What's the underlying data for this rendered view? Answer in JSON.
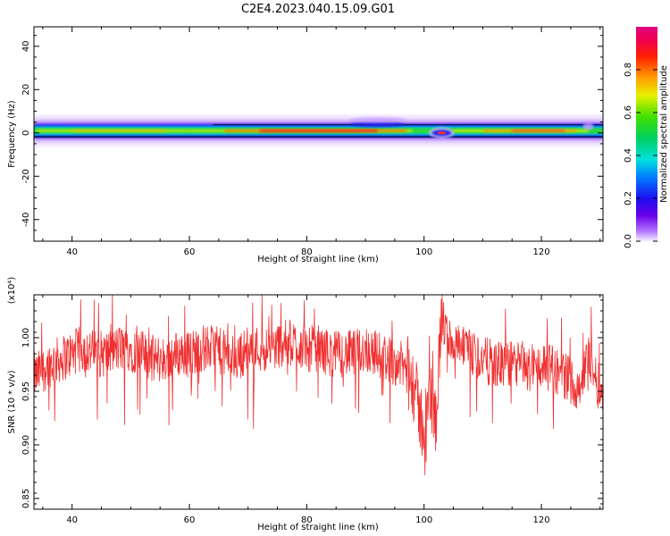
{
  "title": "C2E4.2023.040.15.09.G01",
  "colors": {
    "snr_line": "#f03030",
    "dark_band": "#0a1e6e",
    "axis": "#000000"
  },
  "chart_data": [
    {
      "type": "heatmap",
      "xlabel": "Height of straight line (km)",
      "ylabel": "Frequency (Hz)",
      "xlim": [
        33.5,
        130.5
      ],
      "ylim": [
        -50,
        49
      ],
      "xticks": [
        "40",
        "60",
        "80",
        "100",
        "120"
      ],
      "yticks": [
        "-40",
        "-20",
        "0",
        "20",
        "40"
      ],
      "colorbar": {
        "label": "Normalized spectral amplitude",
        "range": [
          0,
          1
        ],
        "ticks": [
          "0.0",
          "0.2",
          "0.4",
          "0.6",
          "0.8"
        ],
        "colormap": "rainbow (purple-blue-cyan-green-yellow-orange-red-magenta)"
      },
      "band": {
        "center_freq_hz": 1,
        "features": [
          {
            "x_km": 92,
            "note": "broadening above center"
          },
          {
            "x_km": 103,
            "note": "dip / distortion"
          },
          {
            "x_km": 128,
            "note": "slight broadening"
          }
        ]
      },
      "grid": false
    },
    {
      "type": "line",
      "xlabel": "Height of straight line (km)",
      "ylabel": "SNR (10 * v/v)",
      "y_multiplier_label": "(x10⁴)",
      "xlim": [
        33.5,
        130.5
      ],
      "ylim": [
        0.84,
        1.04
      ],
      "xticks": [
        "40",
        "60",
        "80",
        "100",
        "120"
      ],
      "yticks": [
        "0.85",
        "0.90",
        "0.95",
        "1.00"
      ],
      "grid": false,
      "series": [
        {
          "x": [
            34,
            36,
            38,
            40,
            42,
            44,
            46,
            48,
            50,
            52,
            54,
            56,
            58,
            60,
            62,
            64,
            66,
            68,
            70,
            72,
            74,
            76,
            78,
            80,
            82,
            84,
            86,
            88,
            90,
            92,
            94,
            96,
            97,
            98,
            99,
            100,
            101,
            102,
            103,
            104,
            106,
            108,
            110,
            112,
            114,
            116,
            118,
            120,
            122,
            124,
            126,
            127,
            128,
            130
          ],
          "values": [
            0.965,
            0.975,
            0.98,
            0.985,
            0.99,
            0.985,
            0.985,
            0.99,
            0.99,
            0.985,
            0.98,
            0.98,
            0.985,
            0.985,
            0.99,
            0.99,
            0.985,
            0.98,
            0.99,
            0.99,
            0.99,
            0.995,
            0.995,
            0.99,
            0.99,
            0.985,
            0.985,
            0.985,
            0.99,
            0.985,
            0.98,
            0.975,
            0.97,
            0.96,
            0.935,
            0.915,
            0.945,
            0.925,
            1.02,
            1.0,
            0.99,
            0.985,
            0.98,
            0.975,
            0.975,
            0.975,
            0.97,
            0.975,
            0.97,
            0.965,
            0.955,
            0.96,
            0.985,
            0.95
          ]
        }
      ]
    }
  ]
}
